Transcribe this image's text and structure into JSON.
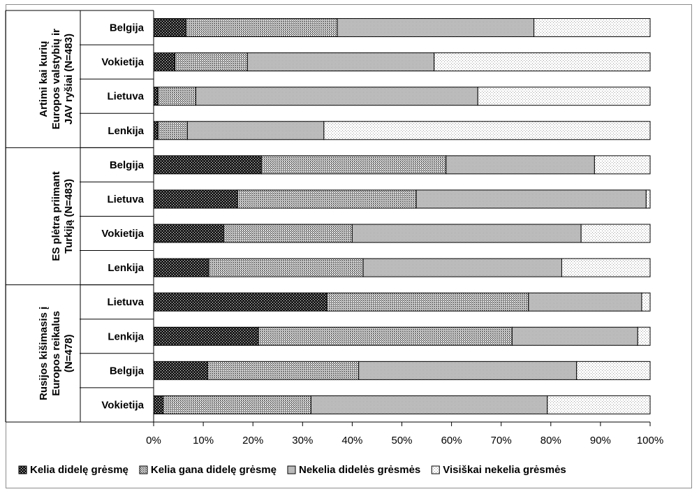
{
  "chart_data": {
    "type": "bar",
    "orientation": "horizontal",
    "stacked": "percent",
    "x_ticks": [
      "0%",
      "10%",
      "20%",
      "30%",
      "40%",
      "50%",
      "60%",
      "70%",
      "80%",
      "90%",
      "100%"
    ],
    "xlim": [
      0,
      100
    ],
    "grid": false,
    "legend_position": "bottom",
    "series": [
      {
        "name": "Kelia didelę grėsmę",
        "pattern": "dense-dots",
        "color": "#1a1a1a"
      },
      {
        "name": "Kelia gana didelę grėsmę",
        "pattern": "medium-dots",
        "color": "#8a8a8a"
      },
      {
        "name": "Nekelia didelės grėsmės",
        "pattern": "fine-hatch",
        "color": "#bdbdbd"
      },
      {
        "name": "Visiškai nekelia grėsmės",
        "pattern": "sparse-dots",
        "color": "#f0f0f0"
      }
    ],
    "groups": [
      {
        "label": [
          "Artimi kai kurių",
          "Europos valstybių ir",
          "JAV ryšiai (N=483)"
        ],
        "rows": [
          {
            "category": "Belgija",
            "values": [
              6.5,
              30.5,
              39.6,
              23.4
            ]
          },
          {
            "category": "Vokietija",
            "values": [
              4.3,
              14.6,
              37.6,
              43.5
            ]
          },
          {
            "category": "Lietuva",
            "values": [
              0.9,
              7.6,
              56.8,
              34.7
            ]
          },
          {
            "category": "Lenkija",
            "values": [
              0.9,
              5.9,
              27.5,
              65.7
            ]
          }
        ]
      },
      {
        "label": [
          "ES plėtra priimant",
          "Turkiją (N=483)"
        ],
        "rows": [
          {
            "category": "Belgija",
            "values": [
              21.7,
              37.2,
              29.9,
              11.2
            ]
          },
          {
            "category": "Lietuva",
            "values": [
              16.9,
              36.0,
              46.3,
              0.8
            ]
          },
          {
            "category": "Vokietija",
            "values": [
              14.1,
              25.9,
              46.1,
              13.9
            ]
          },
          {
            "category": "Lenkija",
            "values": [
              11.1,
              31.1,
              40.0,
              17.8
            ]
          }
        ]
      },
      {
        "label": [
          "Rusijos kišimasis į",
          "Europos reikalus",
          "(N=478)"
        ],
        "rows": [
          {
            "category": "Lietuva",
            "values": [
              34.9,
              40.6,
              22.8,
              1.7
            ]
          },
          {
            "category": "Lenkija",
            "values": [
              21.1,
              51.1,
              25.3,
              2.5
            ]
          },
          {
            "category": "Belgija",
            "values": [
              10.9,
              30.4,
              43.9,
              14.8
            ]
          },
          {
            "category": "Vokietija",
            "values": [
              1.9,
              29.8,
              47.6,
              20.7
            ]
          }
        ]
      }
    ]
  }
}
